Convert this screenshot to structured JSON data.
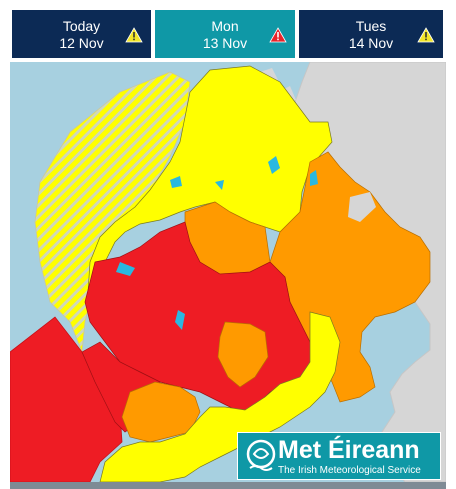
{
  "tabs": [
    {
      "day": "Today",
      "date": "12 Nov",
      "warning": "yellow-warning-icon",
      "warning_color": "#f2e62a",
      "selected": false
    },
    {
      "day": "Mon",
      "date": "13 Nov",
      "warning": "red-warning-icon",
      "warning_color": "#e8242a",
      "selected": true
    },
    {
      "day": "Tues",
      "date": "14 Nov",
      "warning": "yellow-warning-icon",
      "warning_color": "#f2e62a",
      "selected": false
    }
  ],
  "map": {
    "warning_colors": {
      "red": "#ee1c24",
      "orange": "#ff9a00",
      "yellow": "#ffff00",
      "sea": "#a7d0e0",
      "land_other": "#d6d6d6"
    }
  },
  "logo": {
    "name": "Met Éireann",
    "tagline": "The Irish Meteorological Service",
    "background": "#0f98a6"
  }
}
